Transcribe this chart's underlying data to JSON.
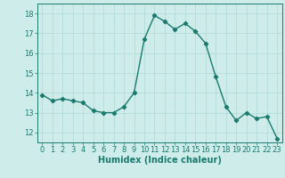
{
  "x": [
    0,
    1,
    2,
    3,
    4,
    5,
    6,
    7,
    8,
    9,
    10,
    11,
    12,
    13,
    14,
    15,
    16,
    17,
    18,
    19,
    20,
    21,
    22,
    23
  ],
  "y": [
    13.9,
    13.6,
    13.7,
    13.6,
    13.5,
    13.1,
    13.0,
    13.0,
    13.3,
    14.0,
    16.7,
    17.9,
    17.6,
    17.2,
    17.5,
    17.1,
    16.5,
    14.8,
    13.3,
    12.6,
    13.0,
    12.7,
    12.8,
    11.7
  ],
  "line_color": "#1a7a6e",
  "marker": "D",
  "marker_size": 2.2,
  "linewidth": 1.0,
  "bg_color": "#ceecea",
  "grid_color": "#aed8d4",
  "xlabel": "Humidex (Indice chaleur)",
  "ylabel": "",
  "xlim": [
    -0.5,
    23.5
  ],
  "ylim": [
    11.5,
    18.5
  ],
  "yticks": [
    12,
    13,
    14,
    15,
    16,
    17,
    18
  ],
  "xticks": [
    0,
    1,
    2,
    3,
    4,
    5,
    6,
    7,
    8,
    9,
    10,
    11,
    12,
    13,
    14,
    15,
    16,
    17,
    18,
    19,
    20,
    21,
    22,
    23
  ],
  "tick_color": "#1a7a6e",
  "label_fontsize": 6.0,
  "axis_label_fontsize": 7.0
}
